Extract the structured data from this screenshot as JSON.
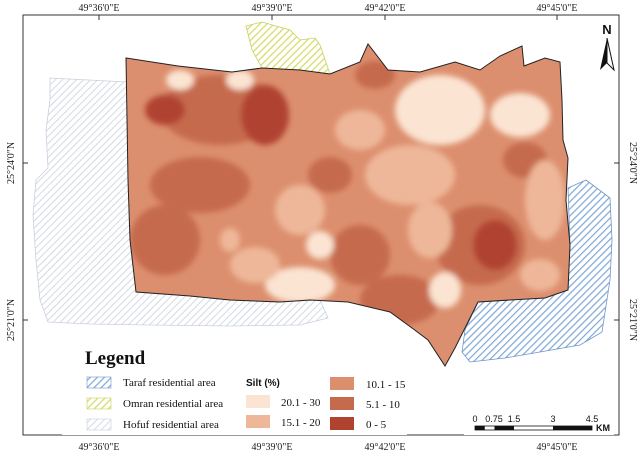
{
  "graticule": {
    "top_labels": [
      "49°36'0\"E",
      "49°39'0\"E",
      "49°42'0\"E",
      "49°45'0\"E"
    ],
    "bottom_labels": [
      "49°36'0\"E",
      "49°39'0\"E",
      "49°42'0\"E",
      "49°45'0\"E"
    ],
    "left_labels": [
      "25°24'0\"N",
      "25°21'0\"N"
    ],
    "right_labels": [
      "25°24'0\"N",
      "25°21'0\"N"
    ]
  },
  "legend": {
    "title": "Legend",
    "areas": [
      {
        "label": "Taraf residential area",
        "color": "#7fa6d6"
      },
      {
        "label": "Omran residential area",
        "color": "#d7dd6b"
      },
      {
        "label": "Hofuf residential area",
        "color": "#c9d0dd"
      }
    ],
    "silt_title": "Silt (%)",
    "silt_classes": [
      {
        "label": "20.1 - 30",
        "color": "#fbe4d2"
      },
      {
        "label": "15.1 - 20",
        "color": "#eeb799"
      },
      {
        "label": "10.1 - 15",
        "color": "#dc8f6e"
      },
      {
        "label": "5.1 - 10",
        "color": "#c66a4d"
      },
      {
        "label": "0 - 5",
        "color": "#b04330"
      }
    ]
  },
  "scale_bar": {
    "ticks": [
      "0",
      "0.75",
      "1.5",
      "3",
      "4.5"
    ],
    "unit": "KM"
  },
  "north_arrow": {
    "label": "N"
  }
}
